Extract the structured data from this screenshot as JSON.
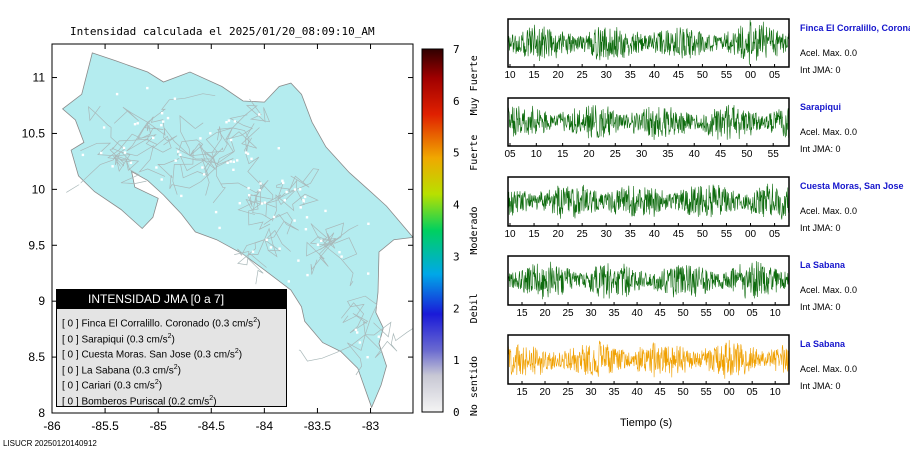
{
  "map": {
    "title": "Intensidad calculada el 2025/01/20_08:09:10_AM",
    "x_ticks": [
      "-86",
      "-85.5",
      "-85",
      "-84.5",
      "-84",
      "-83.5",
      "-83"
    ],
    "y_ticks": [
      "11",
      "10.5",
      "10",
      "9.5",
      "9",
      "8.5",
      "8"
    ],
    "land_color": "#b4ecef",
    "footer": "LISUCR 20250120140912"
  },
  "colorbar": {
    "ticks": [
      "0",
      "1",
      "2",
      "3",
      "4",
      "5",
      "6",
      "7"
    ],
    "categories": [
      "No sentido",
      "Debil",
      "Moderado",
      "Fuerte",
      "Muy Fuerte"
    ]
  },
  "legend": {
    "header": "INTENSIDAD JMA [0 a 7]",
    "rows": [
      {
        "prefix": "[ 0 ]  Finca El Corralillo. Coronado (0.3 cm/s",
        "exp": "2",
        "suffix": ")"
      },
      {
        "prefix": "[ 0 ]  Sarapiqui (0.3 cm/s",
        "exp": "2",
        "suffix": ")"
      },
      {
        "prefix": "[ 0 ]  Cuesta Moras. San Jose (0.3 cm/s",
        "exp": "2",
        "suffix": ")"
      },
      {
        "prefix": "[ 0 ]  La Sabana (0.3 cm/s",
        "exp": "2",
        "suffix": ")"
      },
      {
        "prefix": "[ 0 ]  Cariari (0.3 cm/s",
        "exp": "2",
        "suffix": ")"
      },
      {
        "prefix": "[ 0 ]  Bomberos Puriscal (0.2 cm/s",
        "exp": "2",
        "suffix": ")"
      }
    ]
  },
  "stations": [
    {
      "name": "Finca El Corralillo, Coronado",
      "accel": "Acel. Max. 0.0",
      "jma": "Int JMA: 0",
      "color": "#0d6b0d",
      "ticks": [
        "10",
        "15",
        "20",
        "25",
        "30",
        "35",
        "40",
        "45",
        "50",
        "55",
        "00",
        "05"
      ]
    },
    {
      "name": "Sarapiqui",
      "accel": "Acel. Max. 0.0",
      "jma": "Int JMA: 0",
      "color": "#0d6b0d",
      "ticks": [
        "05",
        "10",
        "15",
        "20",
        "25",
        "30",
        "35",
        "40",
        "45",
        "50",
        "55"
      ]
    },
    {
      "name": "Cuesta Moras, San Jose",
      "accel": "Acel. Max. 0.0",
      "jma": "Int JMA: 0",
      "color": "#0d6b0d",
      "ticks": [
        "10",
        "15",
        "20",
        "25",
        "30",
        "35",
        "40",
        "45",
        "50",
        "55",
        "00",
        "05"
      ]
    },
    {
      "name": "La Sabana",
      "accel": "Acel. Max. 0.0",
      "jma": "Int JMA: 0",
      "color": "#0d6b0d",
      "ticks": [
        "15",
        "20",
        "25",
        "30",
        "35",
        "40",
        "45",
        "50",
        "55",
        "00",
        "05",
        "10"
      ]
    },
    {
      "name": "La Sabana",
      "accel": "Acel. Max. 0.0",
      "jma": "Int JMA: 0",
      "color": "#f0a000",
      "ticks": [
        "15",
        "20",
        "25",
        "30",
        "35",
        "40",
        "45",
        "50",
        "55",
        "00",
        "05",
        "10"
      ]
    }
  ],
  "traces_xlabel": "Tiempo (s)",
  "chart_data": [
    {
      "type": "heatmap",
      "title": "Intensidad calculada el 2025/01/20_08:09:10_AM",
      "xlim": [
        -86,
        -82.6
      ],
      "ylim": [
        8,
        11.3
      ],
      "colorbar_range": [
        0,
        7
      ],
      "uniform_value": 0,
      "grid": false
    },
    {
      "type": "line",
      "xlabel": "Tiempo (s)",
      "series": [
        {
          "name": "Finca El Corralillo, Coronado",
          "peak_accel": 0.0,
          "jma": 0
        },
        {
          "name": "Sarapiqui",
          "peak_accel": 0.0,
          "jma": 0
        },
        {
          "name": "Cuesta Moras, San Jose",
          "peak_accel": 0.0,
          "jma": 0
        },
        {
          "name": "La Sabana",
          "peak_accel": 0.0,
          "jma": 0
        },
        {
          "name": "La Sabana",
          "peak_accel": 0.0,
          "jma": 0
        }
      ]
    }
  ]
}
